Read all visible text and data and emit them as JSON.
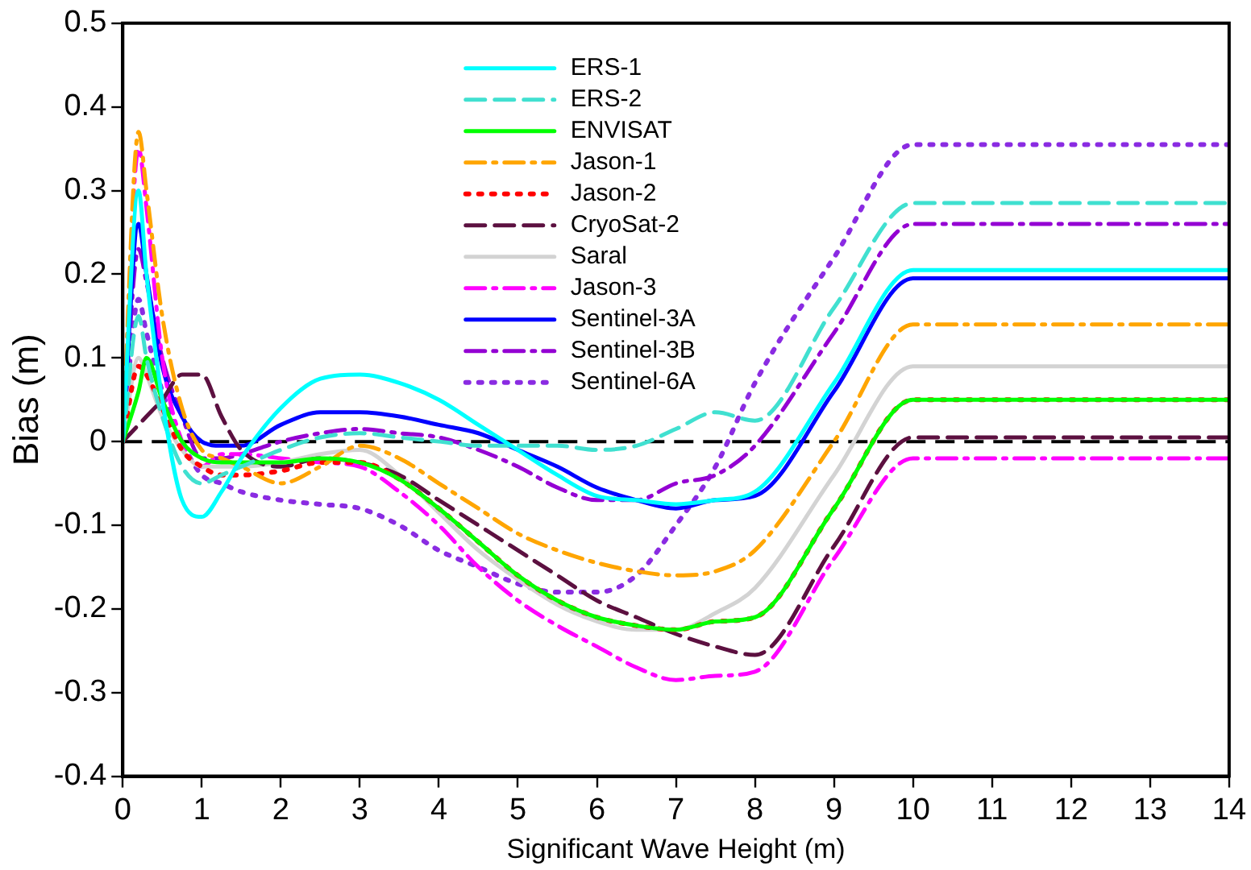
{
  "chart_data": {
    "type": "line",
    "xlabel": "Significant Wave Height (m)",
    "ylabel": "Bias (m)",
    "x": [
      0,
      0.2,
      0.3,
      0.5,
      0.75,
      1,
      1.25,
      1.5,
      2,
      2.5,
      3,
      3.5,
      4,
      4.5,
      5,
      5.5,
      6,
      6.5,
      7,
      7.5,
      8,
      9,
      10,
      14
    ],
    "xlim": [
      0,
      14
    ],
    "xticks": [
      0,
      1,
      2,
      3,
      4,
      5,
      6,
      7,
      8,
      9,
      10,
      11,
      12,
      13,
      14
    ],
    "ylim": [
      -0.4,
      0.5
    ],
    "yticks": [
      -0.4,
      -0.3,
      -0.2,
      -0.1,
      0,
      0.1,
      0.2,
      0.3,
      0.4,
      0.5
    ],
    "grid": false,
    "legend": "top",
    "marker": "none",
    "ref_lines": [
      {
        "axis": "y",
        "value": 0,
        "color": "#000000",
        "line_style": "dashed"
      }
    ],
    "series": [
      {
        "name": "ERS-1",
        "color": "#00ffff",
        "line_style": "solid",
        "values": [
          0,
          0.3,
          0.2,
          0.05,
          -0.07,
          -0.09,
          -0.06,
          -0.02,
          0.04,
          0.075,
          0.08,
          0.07,
          0.05,
          0.02,
          -0.01,
          -0.04,
          -0.065,
          -0.07,
          -0.075,
          -0.07,
          -0.06,
          0.07,
          0.205,
          0.205
        ]
      },
      {
        "name": "ERS-2",
        "color": "#40e0d0",
        "line_style": "dashed",
        "values": [
          0,
          0.15,
          0.1,
          0.03,
          -0.03,
          -0.05,
          -0.04,
          -0.03,
          -0.01,
          0.005,
          0.01,
          0.005,
          0,
          -0.005,
          -0.005,
          -0.005,
          -0.01,
          -0.005,
          0.015,
          0.035,
          0.025,
          0.16,
          0.285,
          0.285
        ]
      },
      {
        "name": "ENVISAT",
        "color": "#00ff00",
        "line_style": "solid",
        "values": [
          0,
          0.06,
          0.1,
          0.05,
          0,
          -0.02,
          -0.025,
          -0.025,
          -0.025,
          -0.02,
          -0.025,
          -0.045,
          -0.08,
          -0.12,
          -0.16,
          -0.19,
          -0.21,
          -0.22,
          -0.225,
          -0.215,
          -0.21,
          -0.08,
          0.05,
          0.05
        ]
      },
      {
        "name": "Jason-1",
        "color": "#ffa500",
        "line_style": "dashdot",
        "values": [
          0,
          0.37,
          0.3,
          0.15,
          0.04,
          -0.01,
          -0.02,
          -0.03,
          -0.05,
          -0.03,
          -0.005,
          -0.02,
          -0.05,
          -0.08,
          -0.11,
          -0.13,
          -0.145,
          -0.155,
          -0.16,
          -0.155,
          -0.13,
          0,
          0.14,
          0.14
        ]
      },
      {
        "name": "Jason-2",
        "color": "#ff0000",
        "line_style": "dotted",
        "values": [
          0,
          0.09,
          0.08,
          0.04,
          -0.01,
          -0.03,
          -0.04,
          -0.04,
          -0.035,
          -0.025,
          -0.025,
          -0.045,
          -0.08,
          -0.12,
          -0.16,
          -0.19,
          -0.21,
          -0.22,
          -0.225,
          -0.215,
          -0.21,
          -0.08,
          0.05,
          0.05
        ]
      },
      {
        "name": "CryoSat-2",
        "color": "#5c1040",
        "line_style": "dashed",
        "values": [
          0,
          0.02,
          0.03,
          0.05,
          0.08,
          0.08,
          0.03,
          -0.01,
          -0.03,
          -0.02,
          -0.025,
          -0.04,
          -0.07,
          -0.1,
          -0.13,
          -0.16,
          -0.19,
          -0.21,
          -0.23,
          -0.245,
          -0.255,
          -0.125,
          0.005,
          0.005
        ]
      },
      {
        "name": "Saral",
        "color": "#d3d3d3",
        "line_style": "solid",
        "values": [
          0,
          0.1,
          0.08,
          0.03,
          -0.01,
          -0.03,
          -0.03,
          -0.03,
          -0.025,
          -0.015,
          -0.01,
          -0.04,
          -0.085,
          -0.13,
          -0.165,
          -0.195,
          -0.215,
          -0.225,
          -0.225,
          -0.205,
          -0.175,
          -0.04,
          0.09,
          0.09
        ]
      },
      {
        "name": "Jason-3",
        "color": "#ff00ff",
        "line_style": "dashdot",
        "values": [
          0,
          0.35,
          0.28,
          0.1,
          0,
          -0.03,
          -0.015,
          -0.015,
          -0.02,
          -0.025,
          -0.03,
          -0.06,
          -0.1,
          -0.15,
          -0.19,
          -0.22,
          -0.245,
          -0.27,
          -0.285,
          -0.28,
          -0.275,
          -0.14,
          -0.02,
          -0.02
        ]
      },
      {
        "name": "Sentinel-3A",
        "color": "#0000ff",
        "line_style": "solid",
        "values": [
          0,
          0.26,
          0.2,
          0.09,
          0.03,
          0,
          -0.005,
          -0.005,
          0.02,
          0.035,
          0.035,
          0.03,
          0.02,
          0.01,
          -0.01,
          -0.03,
          -0.055,
          -0.07,
          -0.08,
          -0.07,
          -0.065,
          0.06,
          0.195,
          0.195
        ]
      },
      {
        "name": "Sentinel-3B",
        "color": "#9400d3",
        "line_style": "dashdot",
        "values": [
          0,
          0.23,
          0.19,
          0.1,
          0.03,
          -0.02,
          -0.02,
          -0.015,
          0,
          0.01,
          0.015,
          0.01,
          0.005,
          -0.01,
          -0.03,
          -0.055,
          -0.07,
          -0.07,
          -0.05,
          -0.04,
          -0.005,
          0.13,
          0.26,
          0.26
        ]
      },
      {
        "name": "Sentinel-6A",
        "color": "#8a2be2",
        "line_style": "dotted",
        "values": [
          0,
          0.17,
          0.13,
          0.06,
          0,
          -0.04,
          -0.05,
          -0.06,
          -0.07,
          -0.075,
          -0.08,
          -0.1,
          -0.13,
          -0.15,
          -0.17,
          -0.18,
          -0.18,
          -0.16,
          -0.1,
          -0.03,
          0.07,
          0.22,
          0.355,
          0.355
        ]
      }
    ]
  }
}
